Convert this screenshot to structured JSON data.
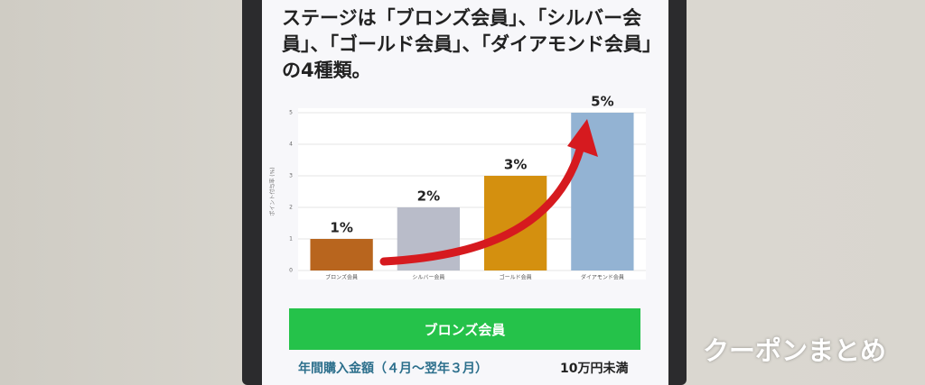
{
  "header": {
    "title": "ステージは「ブロンズ会員」、「シルバー会員」、「ゴールド会員」、「ダイアモンド会員」の4種類。"
  },
  "chart_data": {
    "type": "bar",
    "y_label": "ポイント付与率 (%)",
    "categories": [
      "ブロンズ会員",
      "シルバー会員",
      "ゴールド会員",
      "ダイアモンド会員"
    ],
    "values": [
      1,
      2,
      3,
      5
    ],
    "value_labels": [
      "1%",
      "2%",
      "3%",
      "5%"
    ],
    "colors": [
      "#b8651e",
      "#b9bcc9",
      "#d4900f",
      "#93b3d3"
    ],
    "ylim": [
      0,
      5
    ],
    "yticks": [
      0,
      1,
      2,
      3,
      4,
      5
    ],
    "grid": true
  },
  "button": {
    "label": "ブロンズ会員"
  },
  "table": {
    "rows": [
      [
        "年間購入金額（４月〜翌年３月）",
        "10万円未満"
      ]
    ]
  },
  "watermark": "クーポンまとめ"
}
